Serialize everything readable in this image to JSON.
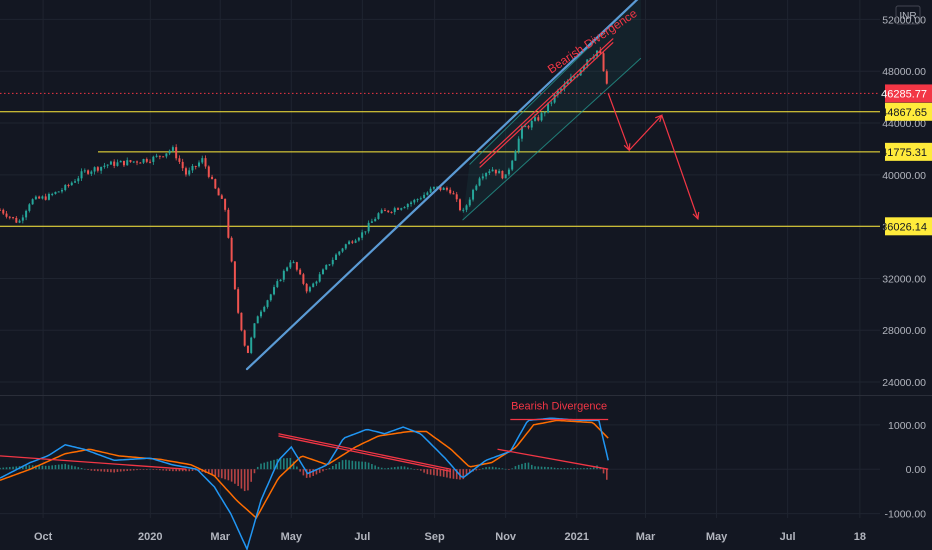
{
  "chart_data": [
    {
      "type": "candlestick",
      "currency": "INR",
      "ylim": [
        23000,
        53500
      ],
      "y_ticks": [
        "52000.00",
        "48000.00",
        "44000.00",
        "40000.00",
        "36000.00",
        "32000.00",
        "28000.00",
        "24000.00"
      ],
      "y_tick_values": [
        52000,
        48000,
        44000,
        40000,
        36000,
        32000,
        28000,
        24000
      ],
      "x_ticks": [
        "Oct",
        "2020",
        "Mar",
        "May",
        "Jul",
        "Sep",
        "Nov",
        "2021",
        "Mar",
        "May",
        "Jul",
        "18"
      ],
      "x_tick_dates": [
        "2019-10-01",
        "2020-01-01",
        "2020-03-01",
        "2020-05-01",
        "2020-07-01",
        "2020-09-01",
        "2020-11-01",
        "2021-01-01",
        "2021-03-01",
        "2021-05-01",
        "2021-07-01",
        "2021-09-01"
      ],
      "date_range": [
        "2019-08-25",
        "2021-09-20"
      ],
      "price_series_points": [
        [
          "2019-08-25",
          37300
        ],
        [
          "2019-09-10",
          36300
        ],
        [
          "2019-09-20",
          38000
        ],
        [
          "2019-10-05",
          38300
        ],
        [
          "2019-10-20",
          39000
        ],
        [
          "2019-11-05",
          40200
        ],
        [
          "2019-11-25",
          40800
        ],
        [
          "2019-12-15",
          41000
        ],
        [
          "2020-01-05",
          41300
        ],
        [
          "2020-01-20",
          42000
        ],
        [
          "2020-02-01",
          40000
        ],
        [
          "2020-02-15",
          41200
        ],
        [
          "2020-02-25",
          39000
        ],
        [
          "2020-03-05",
          37500
        ],
        [
          "2020-03-15",
          30000
        ],
        [
          "2020-03-24",
          26000
        ],
        [
          "2020-04-01",
          29000
        ],
        [
          "2020-04-15",
          31000
        ],
        [
          "2020-05-01",
          33500
        ],
        [
          "2020-05-15",
          31000
        ],
        [
          "2020-06-01",
          33000
        ],
        [
          "2020-06-15",
          34500
        ],
        [
          "2020-07-01",
          35500
        ],
        [
          "2020-07-15",
          37000
        ],
        [
          "2020-08-01",
          37500
        ],
        [
          "2020-08-15",
          38000
        ],
        [
          "2020-09-01",
          39000
        ],
        [
          "2020-09-15",
          38800
        ],
        [
          "2020-09-25",
          37000
        ],
        [
          "2020-10-10",
          40000
        ],
        [
          "2020-10-20",
          40500
        ],
        [
          "2020-11-01",
          39800
        ],
        [
          "2020-11-15",
          43500
        ],
        [
          "2020-12-01",
          44500
        ],
        [
          "2020-12-15",
          46300
        ],
        [
          "2021-01-01",
          47800
        ],
        [
          "2021-01-10",
          49000
        ],
        [
          "2021-01-20",
          49700
        ],
        [
          "2021-01-28",
          46300
        ]
      ],
      "horizontal_levels": [
        {
          "value": 46285.77,
          "label": "46285.77",
          "color": "#f23645",
          "style": "dotted",
          "badge_color": "#f23645",
          "badge_text_color": "#ffffff"
        },
        {
          "value": 44867.65,
          "label": "44867.65",
          "color": "#ffeb3b",
          "style": "solid",
          "badge_color": "#ffeb3b",
          "badge_text_color": "#131722"
        },
        {
          "value": 41775.31,
          "label": "41775.31",
          "color": "#ffeb3b",
          "style": "solid",
          "badge_color": "#ffeb3b",
          "badge_text_color": "#131722"
        },
        {
          "value": 36026.14,
          "label": "36026.14",
          "color": "#ffeb3b",
          "style": "solid",
          "badge_color": "#ffeb3b",
          "badge_text_color": "#131722"
        }
      ],
      "trend_lines": [
        {
          "from": [
            "2020-03-24",
            25000
          ],
          "to": [
            "2021-02-25",
            53800
          ],
          "color": "#5b9bd5"
        },
        {
          "from": [
            "2020-10-10",
            40600
          ],
          "to": [
            "2021-02-01",
            50200
          ],
          "color": "#f23645"
        },
        {
          "from": [
            "2020-10-10",
            40900
          ],
          "to": [
            "2021-02-01",
            50500
          ],
          "color": "#f23645"
        }
      ],
      "channel": {
        "color": "#26a69a",
        "upper": [
          [
            "2020-10-01",
            40800
          ],
          [
            "2021-02-25",
            53800
          ]
        ],
        "lower": [
          [
            "2020-09-25",
            36500
          ],
          [
            "2021-02-25",
            49000
          ]
        ]
      },
      "projection_path": {
        "color": "#f23645",
        "points": [
          [
            "2021-01-28",
            46300
          ],
          [
            "2021-02-15",
            41900
          ],
          [
            "2021-03-15",
            44600
          ],
          [
            "2021-04-15",
            36600
          ]
        ]
      },
      "annotation": {
        "text": "Bearish Divergence",
        "at": [
          "2020-12-10",
          47800
        ],
        "color": "#f23645"
      },
      "colors": {
        "up": "#26a69a",
        "down": "#ef5350"
      }
    },
    {
      "type": "macd",
      "ylim": [
        -1100,
        1650
      ],
      "y_ticks": [
        "1000.00",
        "0.00",
        "-1000.00"
      ],
      "y_tick_values": [
        1000,
        0,
        -1000
      ],
      "macd_points": [
        [
          "2019-08-25",
          -200
        ],
        [
          "2019-09-20",
          150
        ],
        [
          "2019-10-05",
          300
        ],
        [
          "2019-10-20",
          550
        ],
        [
          "2019-11-05",
          450
        ],
        [
          "2019-12-01",
          200
        ],
        [
          "2020-01-01",
          250
        ],
        [
          "2020-01-20",
          100
        ],
        [
          "2020-02-10",
          0
        ],
        [
          "2020-02-25",
          -400
        ],
        [
          "2020-03-10",
          -1000
        ],
        [
          "2020-03-24",
          -1800
        ],
        [
          "2020-04-05",
          -700
        ],
        [
          "2020-04-20",
          200
        ],
        [
          "2020-05-01",
          500
        ],
        [
          "2020-05-15",
          -100
        ],
        [
          "2020-06-01",
          100
        ],
        [
          "2020-06-15",
          700
        ],
        [
          "2020-07-05",
          900
        ],
        [
          "2020-07-20",
          800
        ],
        [
          "2020-08-05",
          950
        ],
        [
          "2020-08-20",
          800
        ],
        [
          "2020-09-10",
          250
        ],
        [
          "2020-09-25",
          -200
        ],
        [
          "2020-10-15",
          200
        ],
        [
          "2020-11-05",
          400
        ],
        [
          "2020-11-20",
          1100
        ],
        [
          "2020-12-10",
          1150
        ],
        [
          "2021-01-05",
          1100
        ],
        [
          "2021-01-20",
          1100
        ],
        [
          "2021-01-28",
          200
        ]
      ],
      "signal_points": [
        [
          "2019-08-25",
          -250
        ],
        [
          "2019-09-20",
          0
        ],
        [
          "2019-10-20",
          350
        ],
        [
          "2019-11-10",
          450
        ],
        [
          "2019-12-05",
          300
        ],
        [
          "2020-01-10",
          220
        ],
        [
          "2020-02-05",
          100
        ],
        [
          "2020-02-25",
          -150
        ],
        [
          "2020-03-15",
          -700
        ],
        [
          "2020-04-01",
          -1100
        ],
        [
          "2020-04-20",
          -200
        ],
        [
          "2020-05-10",
          300
        ],
        [
          "2020-06-01",
          100
        ],
        [
          "2020-06-25",
          500
        ],
        [
          "2020-07-15",
          750
        ],
        [
          "2020-08-10",
          850
        ],
        [
          "2020-08-25",
          850
        ],
        [
          "2020-09-15",
          450
        ],
        [
          "2020-10-01",
          50
        ],
        [
          "2020-10-20",
          150
        ],
        [
          "2020-11-10",
          500
        ],
        [
          "2020-11-25",
          1000
        ],
        [
          "2020-12-15",
          1100
        ],
        [
          "2021-01-15",
          1050
        ],
        [
          "2021-01-28",
          700
        ]
      ],
      "divergence_lines": [
        {
          "from": [
            "2019-08-25",
            300
          ],
          "to": [
            "2020-02-01",
            0
          ]
        },
        {
          "from": [
            "2020-04-20",
            800
          ],
          "to": [
            "2020-09-15",
            0
          ]
        },
        {
          "from": [
            "2020-04-20",
            750
          ],
          "to": [
            "2020-09-15",
            -50
          ]
        },
        {
          "from": [
            "2020-10-25",
            450
          ],
          "to": [
            "2021-01-28",
            0
          ]
        },
        {
          "from": [
            "2020-11-05",
            1120
          ],
          "to": [
            "2021-01-28",
            1120
          ]
        }
      ],
      "annotation": {
        "text": "Bearish Divergence",
        "at": [
          "2020-12-10",
          1350
        ],
        "color": "#f23645"
      },
      "colors": {
        "macd": "#2196f3",
        "signal": "#ff6d00",
        "lines": "#f23645"
      }
    }
  ]
}
